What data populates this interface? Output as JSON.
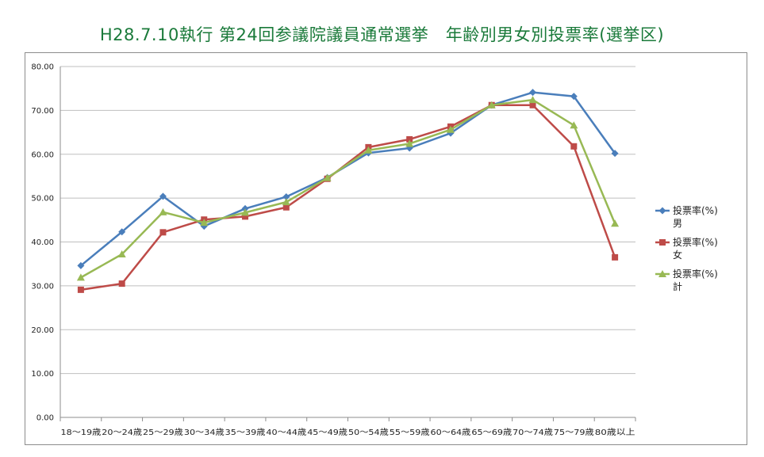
{
  "title": "H28.7.10執行 第24回参議院議員通常選挙　年齢別男女別投票率(選挙区)",
  "chart_data": {
    "type": "line",
    "title": "H28.7.10執行 第24回参議院議員通常選挙　年齢別男女別投票率(選挙区)",
    "xlabel": "",
    "ylabel": "",
    "ylim": [
      0,
      80
    ],
    "yticks": [
      "0.00",
      "10.00",
      "20.00",
      "30.00",
      "40.00",
      "50.00",
      "60.00",
      "70.00",
      "80.00"
    ],
    "grid": true,
    "legend_position": "right",
    "categories": [
      "18～19歳",
      "20～24歳",
      "25～29歳",
      "30～34歳",
      "35～39歳",
      "40～44歳",
      "45～49歳",
      "50～54歳",
      "55～59歳",
      "60～64歳",
      "65～69歳",
      "70～74歳",
      "75～79歳",
      "80歳以上"
    ],
    "series": [
      {
        "name": "投票率(%)男",
        "legend_lines": [
          "投票率(%)",
          "男"
        ],
        "color": "#4a7ebb",
        "marker": "diamond",
        "values": [
          34.6,
          42.3,
          50.4,
          43.6,
          47.6,
          50.3,
          54.7,
          60.3,
          61.4,
          64.8,
          71.2,
          74.1,
          73.2,
          60.2
        ]
      },
      {
        "name": "投票率(%)女",
        "legend_lines": [
          "投票率(%)",
          "女"
        ],
        "color": "#be4b48",
        "marker": "square",
        "values": [
          29.1,
          30.5,
          42.2,
          45.1,
          45.8,
          47.9,
          54.4,
          61.6,
          63.4,
          66.3,
          71.2,
          71.2,
          61.8,
          36.5
        ]
      },
      {
        "name": "投票率(%)計",
        "legend_lines": [
          "投票率(%)",
          "計"
        ],
        "color": "#98b954",
        "marker": "triangle",
        "values": [
          31.9,
          37.2,
          46.8,
          44.4,
          46.7,
          49.1,
          54.6,
          60.9,
          62.4,
          65.6,
          71.2,
          72.4,
          66.6,
          44.2
        ]
      }
    ]
  }
}
